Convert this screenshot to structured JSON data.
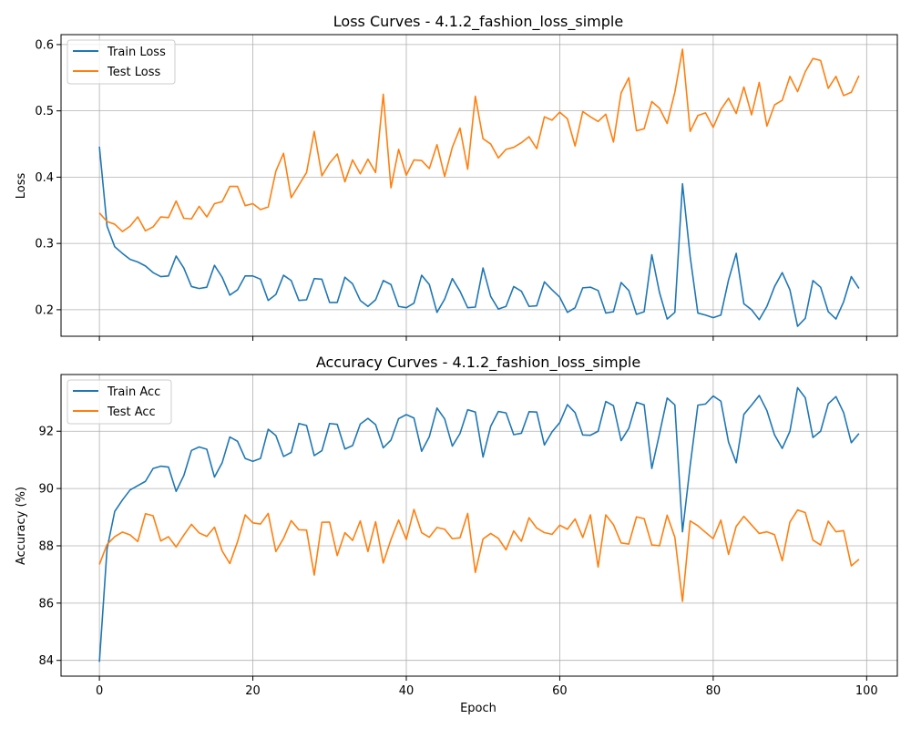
{
  "chart_data": [
    {
      "type": "line",
      "title": "Loss Curves - 4.1.2_fashion_loss_simple",
      "xlabel": "",
      "ylabel": "Loss",
      "xlim": [
        -5,
        104
      ],
      "ylim": [
        0.16,
        0.615
      ],
      "xticks": [
        0,
        20,
        40,
        60,
        80,
        100
      ],
      "xtick_labels": [
        "",
        "",
        "",
        "",
        "",
        ""
      ],
      "yticks": [
        0.2,
        0.3,
        0.4,
        0.5,
        0.6
      ],
      "ytick_labels": [
        "0.2",
        "0.3",
        "0.4",
        "0.5",
        "0.6"
      ],
      "grid": true,
      "legend": "top-left",
      "series": [
        {
          "name": "Train Loss",
          "color": "#1f77b4",
          "values": [
            0.446,
            0.326,
            0.295,
            0.285,
            0.276,
            0.272,
            0.266,
            0.256,
            0.25,
            0.251,
            0.281,
            0.263,
            0.235,
            0.232,
            0.234,
            0.267,
            0.249,
            0.222,
            0.23,
            0.251,
            0.251,
            0.246,
            0.214,
            0.223,
            0.252,
            0.244,
            0.214,
            0.215,
            0.247,
            0.246,
            0.211,
            0.211,
            0.249,
            0.239,
            0.214,
            0.205,
            0.215,
            0.244,
            0.238,
            0.205,
            0.203,
            0.21,
            0.252,
            0.238,
            0.196,
            0.216,
            0.247,
            0.228,
            0.203,
            0.204,
            0.263,
            0.22,
            0.201,
            0.205,
            0.235,
            0.228,
            0.205,
            0.206,
            0.242,
            0.23,
            0.219,
            0.196,
            0.203,
            0.233,
            0.234,
            0.229,
            0.195,
            0.197,
            0.241,
            0.229,
            0.193,
            0.197,
            0.283,
            0.226,
            0.186,
            0.196,
            0.39,
            0.28,
            0.195,
            0.192,
            0.188,
            0.192,
            0.245,
            0.285,
            0.209,
            0.2,
            0.185,
            0.205,
            0.235,
            0.256,
            0.23,
            0.175,
            0.187,
            0.244,
            0.234,
            0.197,
            0.186,
            0.212,
            0.25,
            0.232
          ]
        },
        {
          "name": "Test Loss",
          "color": "#ff7f0e",
          "values": [
            0.346,
            0.333,
            0.329,
            0.318,
            0.326,
            0.34,
            0.319,
            0.325,
            0.34,
            0.339,
            0.364,
            0.338,
            0.337,
            0.356,
            0.34,
            0.36,
            0.363,
            0.386,
            0.386,
            0.357,
            0.36,
            0.351,
            0.355,
            0.409,
            0.436,
            0.369,
            0.388,
            0.407,
            0.469,
            0.402,
            0.421,
            0.435,
            0.393,
            0.426,
            0.405,
            0.427,
            0.407,
            0.525,
            0.384,
            0.442,
            0.403,
            0.426,
            0.425,
            0.413,
            0.449,
            0.401,
            0.445,
            0.474,
            0.412,
            0.522,
            0.458,
            0.45,
            0.429,
            0.442,
            0.445,
            0.452,
            0.461,
            0.443,
            0.491,
            0.486,
            0.498,
            0.488,
            0.447,
            0.499,
            0.491,
            0.484,
            0.495,
            0.453,
            0.527,
            0.55,
            0.47,
            0.473,
            0.514,
            0.504,
            0.481,
            0.528,
            0.593,
            0.469,
            0.493,
            0.497,
            0.475,
            0.502,
            0.519,
            0.496,
            0.536,
            0.494,
            0.543,
            0.477,
            0.509,
            0.516,
            0.552,
            0.529,
            0.559,
            0.579,
            0.576,
            0.534,
            0.552,
            0.523,
            0.528,
            0.553
          ]
        }
      ]
    },
    {
      "type": "line",
      "title": "Accuracy Curves - 4.1.2_fashion_loss_simple",
      "xlabel": "Epoch",
      "ylabel": "Accuracy (%)",
      "xlim": [
        -5,
        104
      ],
      "ylim": [
        83.45,
        93.98
      ],
      "xticks": [
        0,
        20,
        40,
        60,
        80,
        100
      ],
      "xtick_labels": [
        "0",
        "20",
        "40",
        "60",
        "80",
        "100"
      ],
      "yticks": [
        84,
        86,
        88,
        90,
        92
      ],
      "ytick_labels": [
        "84",
        "86",
        "88",
        "90",
        "92"
      ],
      "grid": true,
      "legend": "top-left",
      "series": [
        {
          "name": "Train Acc",
          "color": "#1f77b4",
          "values": [
            83.95,
            87.9,
            89.2,
            89.6,
            89.95,
            90.1,
            90.25,
            90.7,
            90.78,
            90.75,
            89.9,
            90.45,
            91.33,
            91.45,
            91.37,
            90.4,
            90.9,
            91.8,
            91.65,
            91.05,
            90.95,
            91.05,
            92.07,
            91.85,
            91.12,
            91.26,
            92.27,
            92.2,
            91.15,
            91.32,
            92.27,
            92.24,
            91.38,
            91.5,
            92.25,
            92.45,
            92.23,
            91.42,
            91.69,
            92.44,
            92.58,
            92.46,
            91.3,
            91.81,
            92.81,
            92.43,
            91.48,
            91.92,
            92.75,
            92.67,
            91.1,
            92.17,
            92.69,
            92.64,
            91.88,
            91.93,
            92.68,
            92.67,
            91.52,
            91.98,
            92.3,
            92.93,
            92.65,
            91.87,
            91.86,
            92.0,
            93.04,
            92.89,
            91.67,
            92.1,
            93.01,
            92.92,
            90.7,
            91.91,
            93.16,
            92.92,
            88.49,
            90.8,
            92.91,
            92.95,
            93.23,
            93.05,
            91.62,
            90.9,
            92.59,
            92.91,
            93.25,
            92.72,
            91.87,
            91.4,
            92.0,
            93.52,
            93.17,
            91.78,
            92.0,
            92.96,
            93.21,
            92.65,
            91.6,
            91.92
          ]
        },
        {
          "name": "Test Acc",
          "color": "#ff7f0e",
          "values": [
            87.35,
            88.05,
            88.32,
            88.48,
            88.38,
            88.15,
            89.12,
            89.05,
            88.17,
            88.32,
            87.96,
            88.37,
            88.75,
            88.45,
            88.33,
            88.65,
            87.82,
            87.38,
            88.14,
            89.08,
            88.8,
            88.76,
            89.13,
            87.8,
            88.26,
            88.88,
            88.56,
            88.55,
            86.98,
            88.82,
            88.83,
            87.66,
            88.46,
            88.19,
            88.87,
            87.8,
            88.84,
            87.4,
            88.22,
            88.9,
            88.22,
            89.27,
            88.46,
            88.3,
            88.64,
            88.58,
            88.25,
            88.28,
            89.13,
            87.07,
            88.24,
            88.43,
            88.26,
            87.86,
            88.52,
            88.16,
            88.98,
            88.62,
            88.46,
            88.4,
            88.72,
            88.58,
            88.94,
            88.29,
            89.08,
            87.26,
            89.08,
            88.74,
            88.1,
            88.06,
            89.01,
            88.95,
            88.03,
            88.0,
            89.07,
            88.3,
            86.06,
            88.87,
            88.7,
            88.47,
            88.25,
            88.9,
            87.7,
            88.68,
            89.03,
            88.73,
            88.43,
            88.49,
            88.39,
            87.48,
            88.83,
            89.25,
            89.16,
            88.2,
            88.03,
            88.86,
            88.49,
            88.53,
            87.3,
            87.53
          ]
        }
      ]
    }
  ]
}
